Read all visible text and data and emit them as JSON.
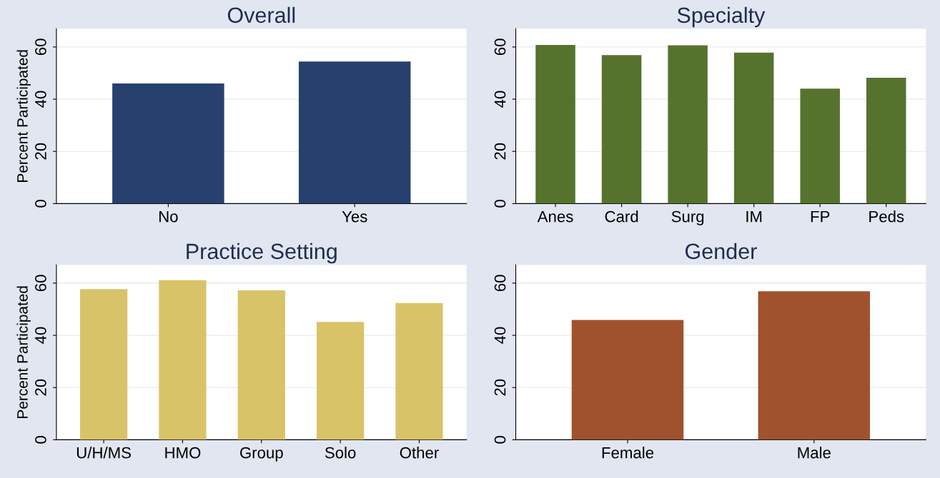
{
  "chart_data": [
    {
      "type": "bar",
      "title": "Overall",
      "ylabel": "Percent Participated",
      "categories": [
        "No",
        "Yes"
      ],
      "values": [
        46.0,
        54.4
      ],
      "color": "#27406e",
      "ylim": [
        0,
        67
      ],
      "yticks": [
        0,
        20,
        40,
        60
      ],
      "grid": "y"
    },
    {
      "type": "bar",
      "title": "Specialty",
      "categories": [
        "Anes",
        "Card",
        "Surg",
        "IM",
        "FP",
        "Peds"
      ],
      "values": [
        60.8,
        56.9,
        60.6,
        57.8,
        44.0,
        48.2
      ],
      "color": "#56732e",
      "ylim": [
        0,
        67
      ],
      "yticks": [
        0,
        20,
        40,
        60
      ],
      "grid": "y"
    },
    {
      "type": "bar",
      "title": "Practice Setting",
      "ylabel": "Percent Participated",
      "categories": [
        "U/H/MS",
        "HMO",
        "Group",
        "Solo",
        "Other"
      ],
      "values": [
        57.7,
        61.1,
        57.2,
        45.1,
        52.4
      ],
      "color": "#d9c368",
      "ylim": [
        0,
        67
      ],
      "yticks": [
        0,
        20,
        40,
        60
      ],
      "grid": "y"
    },
    {
      "type": "bar",
      "title": "Gender",
      "categories": [
        "Female",
        "Male"
      ],
      "values": [
        45.9,
        56.9
      ],
      "color": "#a0522d",
      "ylim": [
        0,
        67
      ],
      "yticks": [
        0,
        20,
        40,
        60
      ],
      "grid": "y"
    }
  ]
}
